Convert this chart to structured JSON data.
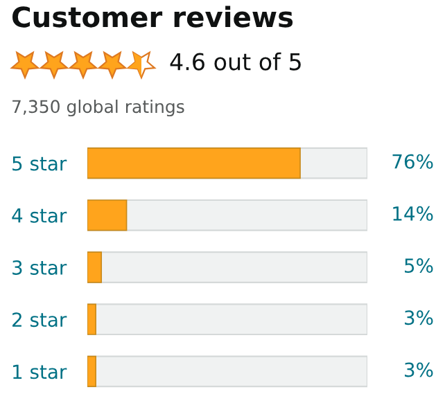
{
  "chart_data": {
    "type": "bar",
    "orientation": "horizontal",
    "title": "Customer reviews",
    "subtitle": "4.6 out of 5",
    "annotations": [
      "7,350 global ratings"
    ],
    "categories": [
      "5 star",
      "4 star",
      "3 star",
      "2 star",
      "1 star"
    ],
    "values": [
      76,
      14,
      5,
      3,
      3
    ],
    "value_labels": [
      "76%",
      "14%",
      "5%",
      "3%",
      "3%"
    ],
    "color": "#ffa41c",
    "xlim": [
      0,
      100
    ],
    "tick_labels": "y"
  }
}
